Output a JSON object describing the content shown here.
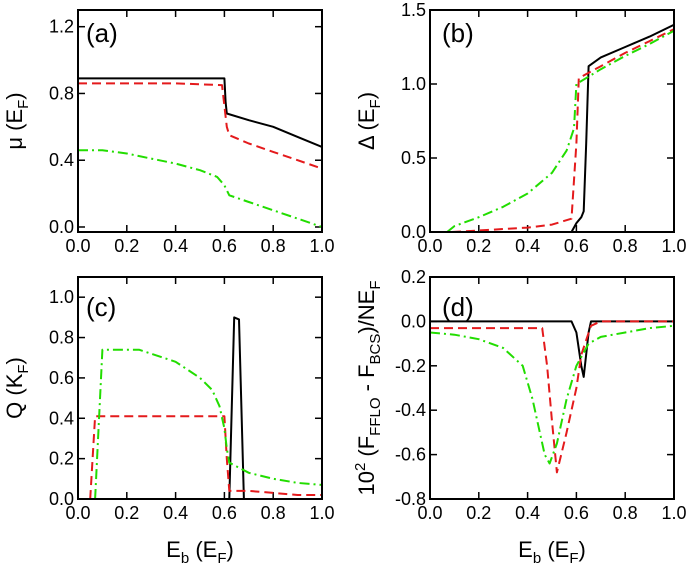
{
  "chart_data": [
    {
      "type": "line",
      "panel_label": "(a)",
      "ylabel": "μ (E",
      "ylabel_sub": "F",
      "ylabel_end": ")",
      "xlabel": "",
      "xlim": [
        0,
        1
      ],
      "ylim": [
        -0.03,
        1.3
      ],
      "xticks": [
        0.0,
        0.2,
        0.4,
        0.6,
        0.8,
        1.0
      ],
      "xtick_labels": [
        "0.0",
        "0.2",
        "0.4",
        "0.6",
        "0.8",
        "1.0"
      ],
      "yticks": [
        0.0,
        0.4,
        0.8,
        1.2
      ],
      "ytick_labels": [
        "0.0",
        "0.4",
        "0.8",
        "1.2"
      ],
      "series": [
        {
          "name": "black",
          "color": "#000000",
          "dash": "solid",
          "x": [
            0,
            0.2,
            0.4,
            0.6,
            0.605,
            0.61,
            0.7,
            0.8,
            0.9,
            1.0
          ],
          "y": [
            0.89,
            0.89,
            0.89,
            0.89,
            0.75,
            0.68,
            0.64,
            0.6,
            0.54,
            0.48
          ]
        },
        {
          "name": "red",
          "color": "#e41a1c",
          "dash": "dashed",
          "x": [
            0,
            0.2,
            0.4,
            0.59,
            0.61,
            0.62,
            0.7,
            0.8,
            0.9,
            1.0
          ],
          "y": [
            0.86,
            0.86,
            0.86,
            0.85,
            0.6,
            0.55,
            0.5,
            0.45,
            0.4,
            0.35
          ]
        },
        {
          "name": "green",
          "color": "#22dd00",
          "dash": "dashdot",
          "x": [
            0,
            0.1,
            0.2,
            0.3,
            0.4,
            0.5,
            0.57,
            0.6,
            0.62,
            0.7,
            0.8,
            0.9,
            1.0
          ],
          "y": [
            0.46,
            0.46,
            0.44,
            0.41,
            0.38,
            0.34,
            0.3,
            0.25,
            0.19,
            0.15,
            0.1,
            0.05,
            0.0
          ]
        }
      ]
    },
    {
      "type": "line",
      "panel_label": "(b)",
      "ylabel": "Δ (E",
      "ylabel_sub": "F",
      "ylabel_end": ")",
      "xlabel": "",
      "xlim": [
        0,
        1
      ],
      "ylim": [
        0,
        1.5
      ],
      "xticks": [
        0.0,
        0.2,
        0.4,
        0.6,
        0.8,
        1.0
      ],
      "xtick_labels": [
        "0.0",
        "0.2",
        "0.4",
        "0.6",
        "0.8",
        "1.0"
      ],
      "yticks": [
        0.0,
        0.5,
        1.0,
        1.5
      ],
      "ytick_labels": [
        "0.0",
        "0.5",
        "1.0",
        "1.5"
      ],
      "series": [
        {
          "name": "black",
          "color": "#000000",
          "dash": "solid",
          "x": [
            0.58,
            0.6,
            0.62,
            0.63,
            0.64,
            0.65,
            0.7,
            0.8,
            0.9,
            1.0
          ],
          "y": [
            0.0,
            0.06,
            0.1,
            0.14,
            0.6,
            1.12,
            1.18,
            1.25,
            1.32,
            1.4
          ]
        },
        {
          "name": "red",
          "color": "#e41a1c",
          "dash": "dashed",
          "x": [
            0.09,
            0.2,
            0.3,
            0.4,
            0.5,
            0.58,
            0.6,
            0.61,
            0.7,
            0.8,
            0.9,
            1.0
          ],
          "y": [
            0.0,
            0.01,
            0.02,
            0.03,
            0.05,
            0.09,
            0.6,
            1.04,
            1.12,
            1.21,
            1.29,
            1.37
          ]
        },
        {
          "name": "green",
          "color": "#22dd00",
          "dash": "dashdot",
          "x": [
            0.07,
            0.1,
            0.2,
            0.3,
            0.4,
            0.5,
            0.56,
            0.59,
            0.6,
            0.7,
            0.8,
            0.9,
            1.0
          ],
          "y": [
            0.0,
            0.04,
            0.1,
            0.17,
            0.26,
            0.4,
            0.55,
            0.7,
            1.0,
            1.1,
            1.19,
            1.27,
            1.36
          ]
        }
      ]
    },
    {
      "type": "line",
      "panel_label": "(c)",
      "ylabel": "Q (K",
      "ylabel_sub": "F",
      "ylabel_end": ")",
      "xlabel": "E",
      "xlabel_sub": "b",
      "xlabel_end": " (E",
      "xlabel_sub2": "F",
      "xlabel_end2": ")",
      "xlim": [
        0,
        1
      ],
      "ylim": [
        0,
        1.1
      ],
      "xticks": [
        0.0,
        0.2,
        0.4,
        0.6,
        0.8,
        1.0
      ],
      "xtick_labels": [
        "0.0",
        "0.2",
        "0.4",
        "0.6",
        "0.8",
        "1.0"
      ],
      "yticks": [
        0.0,
        0.2,
        0.4,
        0.6,
        0.8,
        1.0
      ],
      "ytick_labels": [
        "0.0",
        "0.2",
        "0.4",
        "0.6",
        "0.8",
        "1.0"
      ],
      "series": [
        {
          "name": "black",
          "color": "#000000",
          "dash": "solid",
          "x": [
            0.62,
            0.64,
            0.66,
            0.68
          ],
          "y": [
            0.0,
            0.9,
            0.89,
            0.0
          ]
        },
        {
          "name": "red",
          "color": "#e41a1c",
          "dash": "dashed",
          "x": [
            0.05,
            0.07,
            0.2,
            0.4,
            0.6,
            0.61,
            0.62,
            0.7,
            0.8,
            0.9,
            1.0
          ],
          "y": [
            0.0,
            0.41,
            0.41,
            0.41,
            0.41,
            0.2,
            0.04,
            0.04,
            0.03,
            0.02,
            0.02
          ]
        },
        {
          "name": "green",
          "color": "#22dd00",
          "dash": "dashdot",
          "x": [
            0.07,
            0.1,
            0.2,
            0.25,
            0.3,
            0.4,
            0.5,
            0.55,
            0.58,
            0.6,
            0.61,
            0.62,
            0.7,
            0.8,
            0.9,
            1.0
          ],
          "y": [
            0.0,
            0.74,
            0.74,
            0.74,
            0.72,
            0.68,
            0.6,
            0.54,
            0.46,
            0.35,
            0.25,
            0.18,
            0.13,
            0.1,
            0.08,
            0.07
          ]
        }
      ]
    },
    {
      "type": "line",
      "panel_label": "(d)",
      "ylabel": "10",
      "ylabel_sup": "2",
      "ylabel_mid": " (F",
      "ylabel_sub": "FFLO",
      "ylabel_mid2": " - F",
      "ylabel_sub2": "BCS",
      "ylabel_end": ")/NE",
      "ylabel_sub3": "F",
      "xlabel": "E",
      "xlabel_sub": "b",
      "xlabel_end": " (E",
      "xlabel_sub2": "F",
      "xlabel_end2": ")",
      "xlim": [
        0,
        1
      ],
      "ylim": [
        -0.8,
        0.2
      ],
      "xticks": [
        0.0,
        0.2,
        0.4,
        0.6,
        0.8,
        1.0
      ],
      "xtick_labels": [
        "0.0",
        "0.2",
        "0.4",
        "0.6",
        "0.8",
        "1.0"
      ],
      "yticks": [
        -0.8,
        -0.6,
        -0.4,
        -0.2,
        0.0,
        0.2
      ],
      "ytick_labels": [
        "-0.8",
        "-0.6",
        "-0.4",
        "-0.2",
        "0.0",
        "0.2"
      ],
      "series": [
        {
          "name": "black",
          "color": "#000000",
          "dash": "solid",
          "x": [
            0,
            0.2,
            0.4,
            0.58,
            0.6,
            0.62,
            0.63,
            0.65,
            0.66,
            0.7,
            1.0
          ],
          "y": [
            0.0,
            0.0,
            0.0,
            0.0,
            -0.05,
            -0.2,
            -0.25,
            -0.05,
            0.0,
            0.0,
            0.0
          ]
        },
        {
          "name": "red",
          "color": "#e41a1c",
          "dash": "dashed",
          "x": [
            0,
            0.2,
            0.4,
            0.46,
            0.48,
            0.5,
            0.52,
            0.56,
            0.6,
            0.62,
            0.66,
            0.7,
            1.0
          ],
          "y": [
            -0.03,
            -0.03,
            -0.03,
            -0.03,
            -0.2,
            -0.45,
            -0.68,
            -0.5,
            -0.3,
            -0.15,
            -0.02,
            0.0,
            0.0
          ]
        },
        {
          "name": "green",
          "color": "#22dd00",
          "dash": "dashdot",
          "x": [
            0,
            0.1,
            0.2,
            0.3,
            0.38,
            0.42,
            0.45,
            0.47,
            0.49,
            0.52,
            0.56,
            0.6,
            0.65,
            0.7,
            0.8,
            0.9,
            1.0
          ],
          "y": [
            -0.05,
            -0.06,
            -0.08,
            -0.12,
            -0.2,
            -0.35,
            -0.5,
            -0.6,
            -0.64,
            -0.55,
            -0.35,
            -0.2,
            -0.1,
            -0.07,
            -0.05,
            -0.03,
            -0.02
          ]
        }
      ]
    }
  ]
}
